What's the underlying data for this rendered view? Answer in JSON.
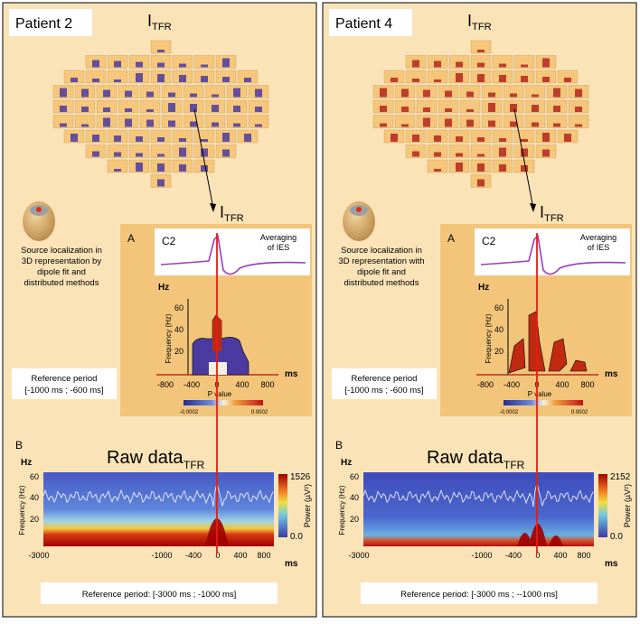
{
  "panels": [
    {
      "patient": "Patient 2",
      "topo_title": {
        "main": "I",
        "sub": "TFR"
      },
      "inset_title": {
        "main": "I",
        "sub": "TFR"
      },
      "source_text": [
        "Source localization in",
        "3D representation by",
        "dipole fit and",
        "distributed methods"
      ],
      "reference_text": [
        "Reference period",
        "[-1000 ms ; -600 ms]"
      ],
      "inset": {
        "label": "A",
        "channel": "C2",
        "averaging": [
          "Averaging",
          "of IES"
        ],
        "y_unit": "Hz",
        "y_label": "Frequency (Hz)",
        "yticks": [
          "60",
          "40",
          "20"
        ],
        "xticks": [
          "-800",
          "-400",
          "0",
          "400",
          "800"
        ],
        "x_unit": "ms",
        "colorbar_title": "P value",
        "colorbar_labels": [
          "-0.0002",
          "0.0002"
        ]
      },
      "raw": {
        "label": "B",
        "title": "Raw data",
        "title_sub": "TFR",
        "y_unit": "Hz",
        "y_label": "Frequency (Hz)",
        "yticks": [
          "60",
          "40",
          "20"
        ],
        "xticks": [
          "-3000",
          "-1000",
          "-400",
          "0",
          "400",
          "800"
        ],
        "x_unit": "ms",
        "colorbar_max": "1526",
        "colorbar_min": "0.0",
        "colorbar_title": "Power (µV²)",
        "reference": "Reference period: [-3000 ms ; -1000 ms]"
      }
    },
    {
      "patient": "Patient 4",
      "topo_title": {
        "main": "I",
        "sub": "TFR"
      },
      "inset_title": {
        "main": "I",
        "sub": "TFR"
      },
      "source_text": [
        "Source localization in",
        "3D representation with",
        "dipole fit and",
        "distributed methods"
      ],
      "reference_text": [
        "Reference period",
        "[-1000 ms ; -600 ms]"
      ],
      "inset": {
        "label": "A",
        "channel": "C2",
        "averaging": [
          "Averaging",
          "of IES"
        ],
        "y_unit": "Hz",
        "y_label": "Frequency (Hz)",
        "yticks": [
          "60",
          "40",
          "20"
        ],
        "xticks": [
          "-800",
          "-400",
          "0",
          "400",
          "800"
        ],
        "x_unit": "ms",
        "colorbar_title": "P value",
        "colorbar_labels": [
          "-0.0002",
          "0.0002"
        ]
      },
      "raw": {
        "label": "B",
        "title": "Raw data",
        "title_sub": "TFR",
        "y_unit": "Hz",
        "y_label": "Frequency (Hz)",
        "yticks": [
          "60",
          "40",
          "20"
        ],
        "xticks": [
          "-3000",
          "-1000",
          "-400",
          "0",
          "400",
          "800"
        ],
        "x_unit": "ms",
        "colorbar_max": "2152",
        "colorbar_min": "0.0",
        "colorbar_title": "Power (µV²)",
        "reference": "Reference period: [-3000 ms ; --1000 ms]"
      }
    }
  ]
}
